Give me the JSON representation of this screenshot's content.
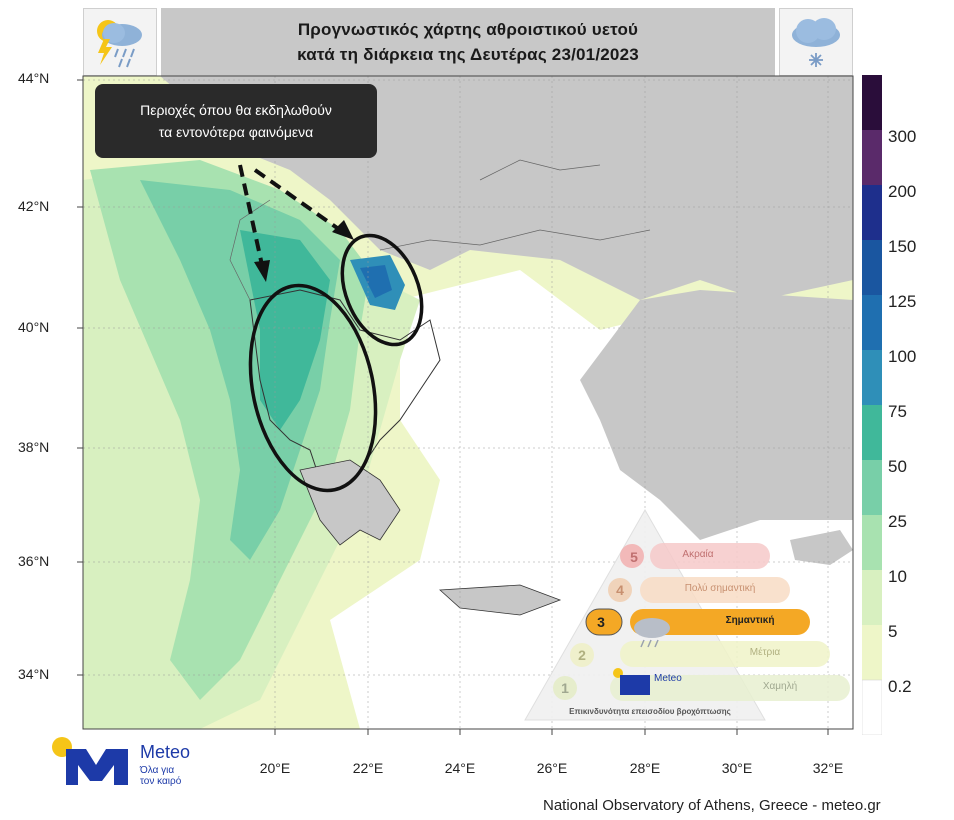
{
  "header": {
    "title_line1": "Προγνωστικός χάρτης αθροιστικού υετού",
    "title_line2": "κατά τη διάρκεια της Δευτέρας 23/01/2023",
    "left_icon": "thunderstorm-rain-icon",
    "right_icon": "snow-cloud-icon"
  },
  "callout": {
    "line1": "Περιοχές όπου θα εκδηλωθούν",
    "line2": "τα εντονότερα φαινόμενα"
  },
  "axes": {
    "lat_labels": [
      "44°N",
      "42°N",
      "40°N",
      "38°N",
      "36°N",
      "34°N"
    ],
    "lon_labels": [
      "20°E",
      "22°E",
      "24°E",
      "26°E",
      "28°E",
      "30°E",
      "32°E"
    ]
  },
  "legend": {
    "levels": [
      "0.2",
      "5",
      "10",
      "25",
      "50",
      "75",
      "100",
      "125",
      "150",
      "200",
      "300"
    ],
    "colors": [
      "#ffffff",
      "#eef6c8",
      "#d8f0c0",
      "#a8e2b0",
      "#78cfa8",
      "#40b89a",
      "#2f8fb8",
      "#1f6fb0",
      "#1a56a0",
      "#1e2f8c",
      "#5a2a6a",
      "#2a0d3a"
    ]
  },
  "risk_triangle": {
    "title": "Επικινδυνότητα επεισοδίου βροχόπτωσης",
    "levels": [
      {
        "num": "5",
        "label": "Ακραία"
      },
      {
        "num": "4",
        "label": "Πολύ σημαντική"
      },
      {
        "num": "3",
        "label": "Σημαντική"
      },
      {
        "num": "2",
        "label": "Μέτρια"
      },
      {
        "num": "1",
        "label": "Χαμηλή"
      }
    ],
    "active_level": 3,
    "logo_text": "Meteo",
    "logo_sub1": "Όλα για",
    "logo_sub2": "τον καιρό"
  },
  "brand": {
    "name": "Meteo",
    "tagline1": "Όλα για",
    "tagline2": "τον καιρό"
  },
  "footer": {
    "text": "National Observatory of Athens, Greece - meteo.gr"
  }
}
